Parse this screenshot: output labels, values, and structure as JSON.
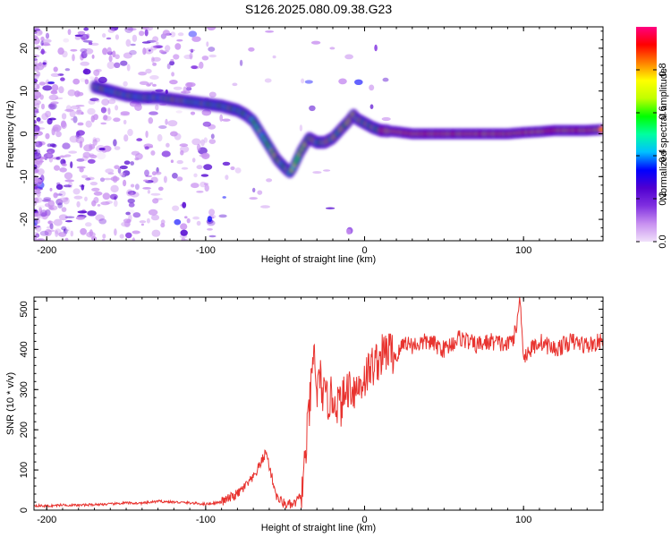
{
  "figure": {
    "title": "S126.2025.080.09.38.G23"
  },
  "colors": {
    "snr_line": "#e8332f",
    "background": "#ffffff",
    "colormap": [
      "#f0e0fa",
      "#c890f0",
      "#8030e0",
      "#5000d0",
      "#0000ff",
      "#00c0ff",
      "#00ffa0",
      "#00ff00",
      "#c0ff00",
      "#ffff00",
      "#ff8000",
      "#ff0000",
      "#ff0080"
    ]
  },
  "chart_data": [
    {
      "type": "heatmap",
      "title": "",
      "xlabel": "Height of straight line (km)",
      "ylabel": "Frequency (Hz)",
      "xlim": [
        -208,
        150
      ],
      "ylim": [
        -25,
        25
      ],
      "x_ticks": [
        -200,
        -100,
        0,
        100
      ],
      "x_tick_labels": [
        "-200",
        "-100",
        "0",
        "100"
      ],
      "y_ticks": [
        -20,
        -10,
        0,
        10,
        20
      ],
      "y_tick_labels": [
        "-20",
        "-10",
        "0",
        "10",
        "20"
      ],
      "colorbar": {
        "label": "Normalized spectral amplitude",
        "range": [
          0,
          1
        ],
        "ticks": [
          0.0,
          0.2,
          0.4,
          0.6,
          0.8
        ],
        "tick_labels": [
          "0.0",
          "0.2",
          "0.4",
          "0.6",
          "0.8"
        ]
      },
      "ridge": {
        "x": [
          -170,
          -160,
          -150,
          -140,
          -130,
          -120,
          -110,
          -100,
          -90,
          -80,
          -75,
          -70,
          -65,
          -60,
          -55,
          -50,
          -47,
          -45,
          -40,
          -35,
          -30,
          -25,
          -20,
          -15,
          -10,
          -7,
          -5,
          0,
          5,
          10,
          20,
          30,
          40,
          50,
          60,
          70,
          80,
          90,
          100,
          110,
          120,
          130,
          140,
          150
        ],
        "y": [
          11,
          10,
          9,
          8.5,
          8.5,
          8,
          7.5,
          7,
          6.5,
          5.5,
          4.5,
          3,
          0,
          -3,
          -6,
          -8,
          -9,
          -8,
          -4,
          -1,
          -2,
          -2,
          -1,
          1,
          3,
          4.5,
          3.5,
          2.5,
          1.5,
          0.8,
          0.5,
          0,
          0,
          0,
          0,
          0,
          0,
          0,
          0.3,
          0.5,
          0.8,
          0.8,
          0.8,
          1
        ]
      }
    },
    {
      "type": "line",
      "title": "",
      "xlabel": "Height of straight line (km)",
      "ylabel": "SNR (10 * v/v)",
      "xlim": [
        -208,
        150
      ],
      "ylim": [
        0,
        530
      ],
      "x_ticks": [
        -200,
        -100,
        0,
        100
      ],
      "x_tick_labels": [
        "-200",
        "-100",
        "0",
        "100"
      ],
      "y_ticks": [
        0,
        100,
        200,
        300,
        400,
        500
      ],
      "y_tick_labels": [
        "0",
        "100",
        "200",
        "300",
        "400",
        "500"
      ],
      "series": [
        {
          "name": "",
          "x": [
            -208,
            -200,
            -190,
            -180,
            -170,
            -160,
            -150,
            -140,
            -130,
            -120,
            -110,
            -100,
            -90,
            -85,
            -80,
            -75,
            -70,
            -65,
            -62,
            -60,
            -57,
            -55,
            -50,
            -45,
            -40,
            -38,
            -35,
            -33,
            -32,
            -30,
            -28,
            -25,
            -20,
            -15,
            -10,
            -5,
            0,
            5,
            10,
            15,
            20,
            25,
            30,
            40,
            50,
            60,
            70,
            80,
            90,
            95,
            98,
            100,
            102,
            110,
            120,
            130,
            140,
            150
          ],
          "y": [
            12,
            10,
            13,
            12,
            14,
            15,
            18,
            17,
            22,
            20,
            18,
            15,
            20,
            30,
            40,
            60,
            80,
            120,
            145,
            110,
            60,
            30,
            15,
            12,
            35,
            100,
            240,
            330,
            400,
            290,
            330,
            270,
            280,
            260,
            310,
            300,
            330,
            360,
            380,
            400,
            380,
            420,
            410,
            420,
            400,
            430,
            410,
            420,
            410,
            440,
            530,
            380,
            390,
            420,
            400,
            420,
            410,
            420
          ]
        }
      ]
    }
  ]
}
